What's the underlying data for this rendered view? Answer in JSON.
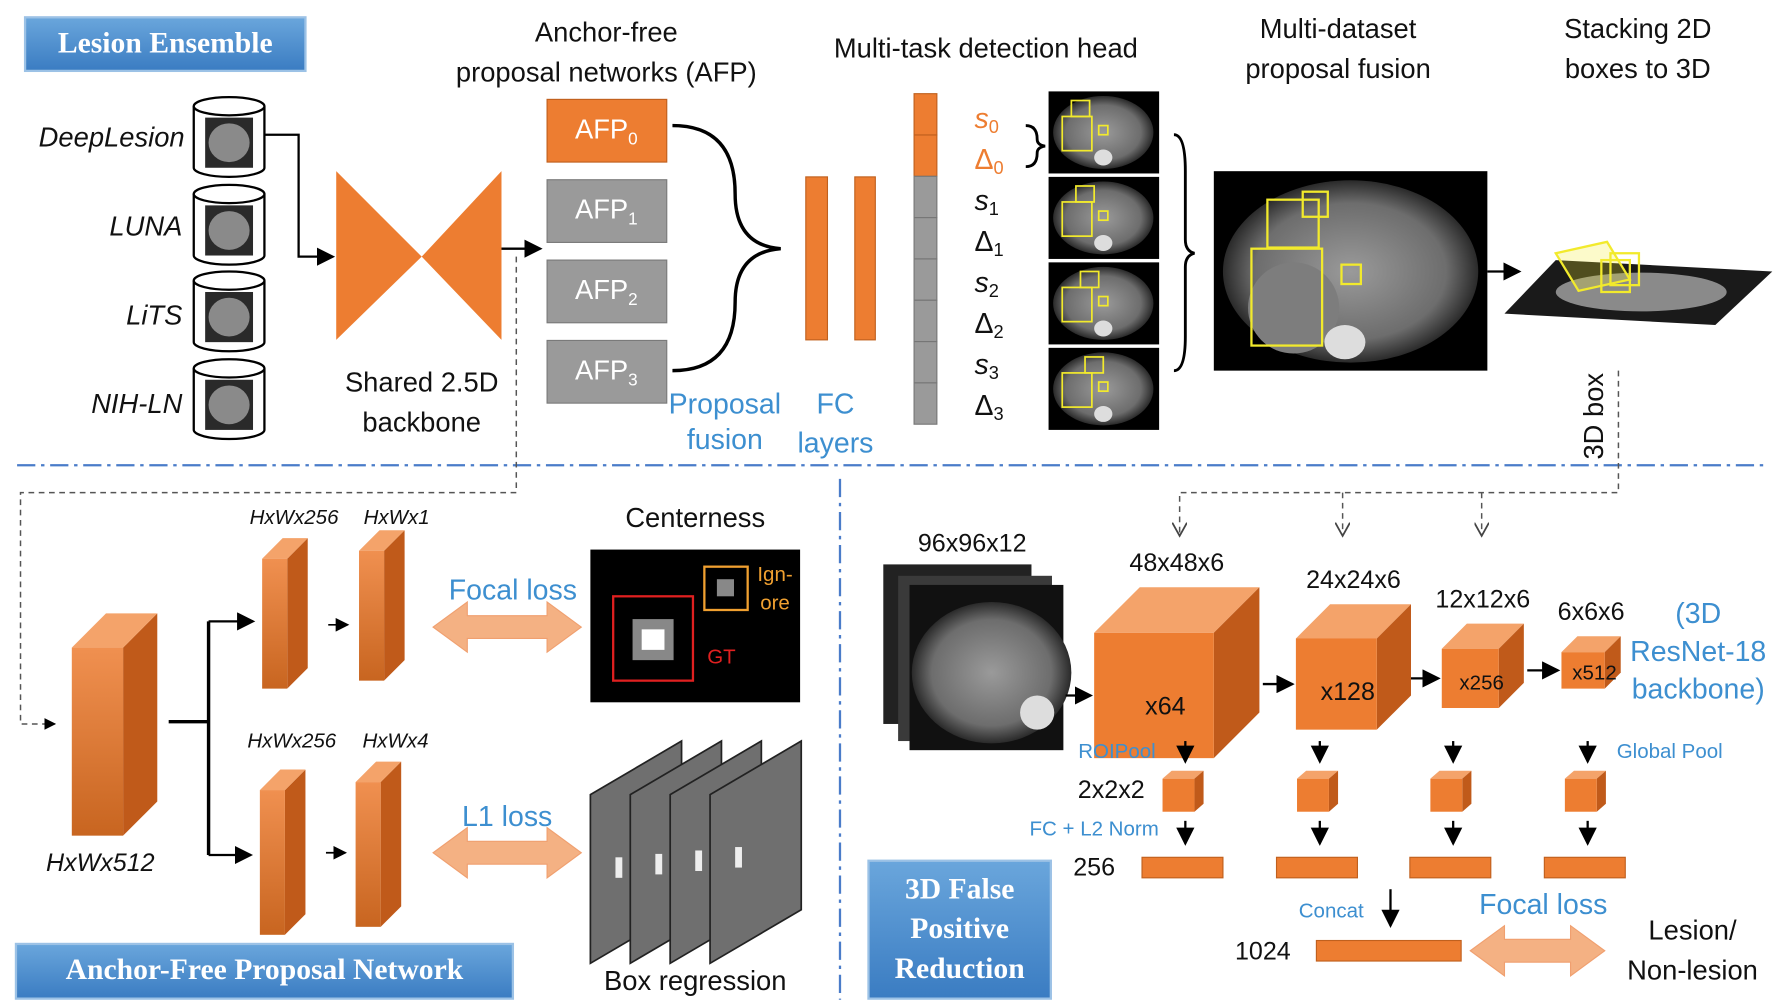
{
  "top": {
    "badge": "Lesion Ensemble",
    "datasets": [
      "DeepLesion",
      "LUNA",
      "LiTS",
      "NIH-LN"
    ],
    "backbone_label": [
      "Shared 2.5D",
      "backbone"
    ],
    "afp_title": [
      "Anchor-free",
      "proposal networks (AFP)"
    ],
    "afps": [
      {
        "name": "AFP",
        "sub": "0"
      },
      {
        "name": "AFP",
        "sub": "1"
      },
      {
        "name": "AFP",
        "sub": "2"
      },
      {
        "name": "AFP",
        "sub": "3"
      }
    ],
    "proposal_fusion": [
      "Proposal",
      "fusion"
    ],
    "fc_layers": [
      "FC",
      "layers"
    ],
    "head_title": "Multi-task detection head",
    "head_outputs": [
      {
        "symbol": "s",
        "sub": "0"
      },
      {
        "symbol": "Δ",
        "sub": "0"
      },
      {
        "symbol": "s",
        "sub": "1"
      },
      {
        "symbol": "Δ",
        "sub": "1"
      },
      {
        "symbol": "s",
        "sub": "2"
      },
      {
        "symbol": "Δ",
        "sub": "2"
      },
      {
        "symbol": "s",
        "sub": "3"
      },
      {
        "symbol": "Δ",
        "sub": "3"
      }
    ],
    "fusion_title": [
      "Multi-dataset",
      "proposal fusion"
    ],
    "stacking_title": [
      "Stacking 2D",
      "boxes to 3D"
    ],
    "box3d": "3D box"
  },
  "afpn": {
    "badge": "Anchor-Free Proposal Network",
    "input_label": "HxWx512",
    "feature_labels": [
      "HxWx256",
      "HxWx1",
      "HxWx256",
      "HxWx4"
    ],
    "focal_loss": "Focal loss",
    "l1_loss": "L1 loss",
    "centerness": "Centerness",
    "ignore": [
      "Ign-",
      "ore"
    ],
    "gt": "GT",
    "box_regression": "Box regression"
  },
  "fpr": {
    "badge": [
      "3D False",
      "Positive",
      "Reduction"
    ],
    "input_size": "96x96x12",
    "stages": [
      {
        "size": "48x48x6",
        "channels": "x64"
      },
      {
        "size": "24x24x6",
        "channels": "x128"
      },
      {
        "size": "12x12x6",
        "channels": "x256"
      },
      {
        "size": "6x6x6",
        "channels": "x512"
      }
    ],
    "backbone_note": [
      "(3D",
      "ResNet-18",
      "backbone)"
    ],
    "roipool": "ROIPool",
    "global_pool": "Global Pool",
    "pooled_size": "2x2x2",
    "fc_norm": "FC + L2 Norm",
    "vector_size": "256",
    "concat": "Concat",
    "concat_size": "1024",
    "focal_loss": "Focal loss",
    "output": [
      "Lesion/",
      "Non-lesion"
    ]
  }
}
